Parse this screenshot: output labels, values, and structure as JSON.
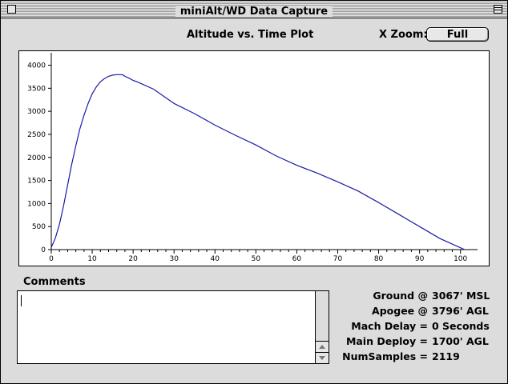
{
  "window": {
    "title": "miniAlt/WD Data Capture"
  },
  "plot": {
    "title": "Altitude vs. Time Plot"
  },
  "x_zoom": {
    "label": "X Zoom:",
    "value": "Full"
  },
  "chart_data": {
    "type": "line",
    "title": "Altitude vs. Time Plot",
    "xlabel": "",
    "ylabel": "",
    "xlim": [
      0,
      103
    ],
    "ylim": [
      0,
      4200
    ],
    "xticks": [
      0,
      10,
      20,
      30,
      40,
      50,
      60,
      70,
      80,
      90,
      100
    ],
    "yticks": [
      0,
      500,
      1000,
      1500,
      2000,
      2500,
      3000,
      3500,
      4000
    ],
    "grid": false,
    "series": [
      {
        "color": "#1a1aa8",
        "x": [
          0,
          1,
          2,
          3,
          4,
          5,
          6,
          7,
          8,
          9,
          10,
          11,
          12,
          13,
          14,
          15,
          16,
          17,
          17.5,
          18,
          19,
          20,
          21,
          22,
          25,
          30,
          35,
          40,
          45,
          50,
          55,
          60,
          65,
          70,
          75,
          80,
          85,
          90,
          95,
          100,
          101
        ],
        "y": [
          50,
          250,
          550,
          950,
          1400,
          1850,
          2250,
          2620,
          2920,
          3170,
          3380,
          3530,
          3640,
          3710,
          3760,
          3785,
          3795,
          3796,
          3790,
          3760,
          3720,
          3670,
          3640,
          3600,
          3480,
          3170,
          2950,
          2700,
          2480,
          2270,
          2030,
          1830,
          1660,
          1470,
          1270,
          1020,
          760,
          500,
          240,
          40,
          0
        ]
      }
    ]
  },
  "comments": {
    "label": "Comments",
    "text": ""
  },
  "stats": [
    {
      "label": "Ground @",
      "value": "3067' MSL"
    },
    {
      "label": "Apogee @",
      "value": "3796' AGL"
    },
    {
      "label": "Mach Delay =",
      "value": "0 Seconds"
    },
    {
      "label": "Main Deploy =",
      "value": "1700' AGL"
    },
    {
      "label": "NumSamples =",
      "value": "2119"
    }
  ]
}
